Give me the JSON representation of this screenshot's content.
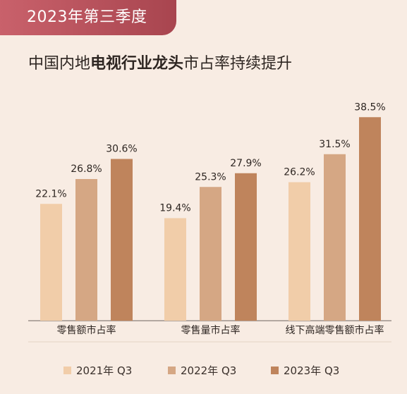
{
  "header": {
    "badge": "2023年第三季度",
    "headline_pre": "中国内地",
    "headline_bold": "电视行业龙头",
    "headline_post": "市占率持续提升"
  },
  "colors": {
    "background": "#f8ece3",
    "badge": "#b8505a",
    "series": [
      "#f1cda9",
      "#d5a784",
      "#bf845c"
    ],
    "axis": "#6e655f"
  },
  "chart_data": {
    "type": "bar",
    "categories": [
      "零售额市占率",
      "零售量市占率",
      "线下高端零售额市占率"
    ],
    "series": [
      {
        "name": "2021年 Q3",
        "values": [
          22.1,
          19.4,
          26.2
        ]
      },
      {
        "name": "2022年 Q3",
        "values": [
          26.8,
          25.3,
          31.5
        ]
      },
      {
        "name": "2023年 Q3",
        "values": [
          30.6,
          27.9,
          38.5
        ]
      }
    ],
    "value_suffix": "%",
    "ylim": [
      0,
      40
    ],
    "grid": false,
    "legend_position": "bottom"
  }
}
